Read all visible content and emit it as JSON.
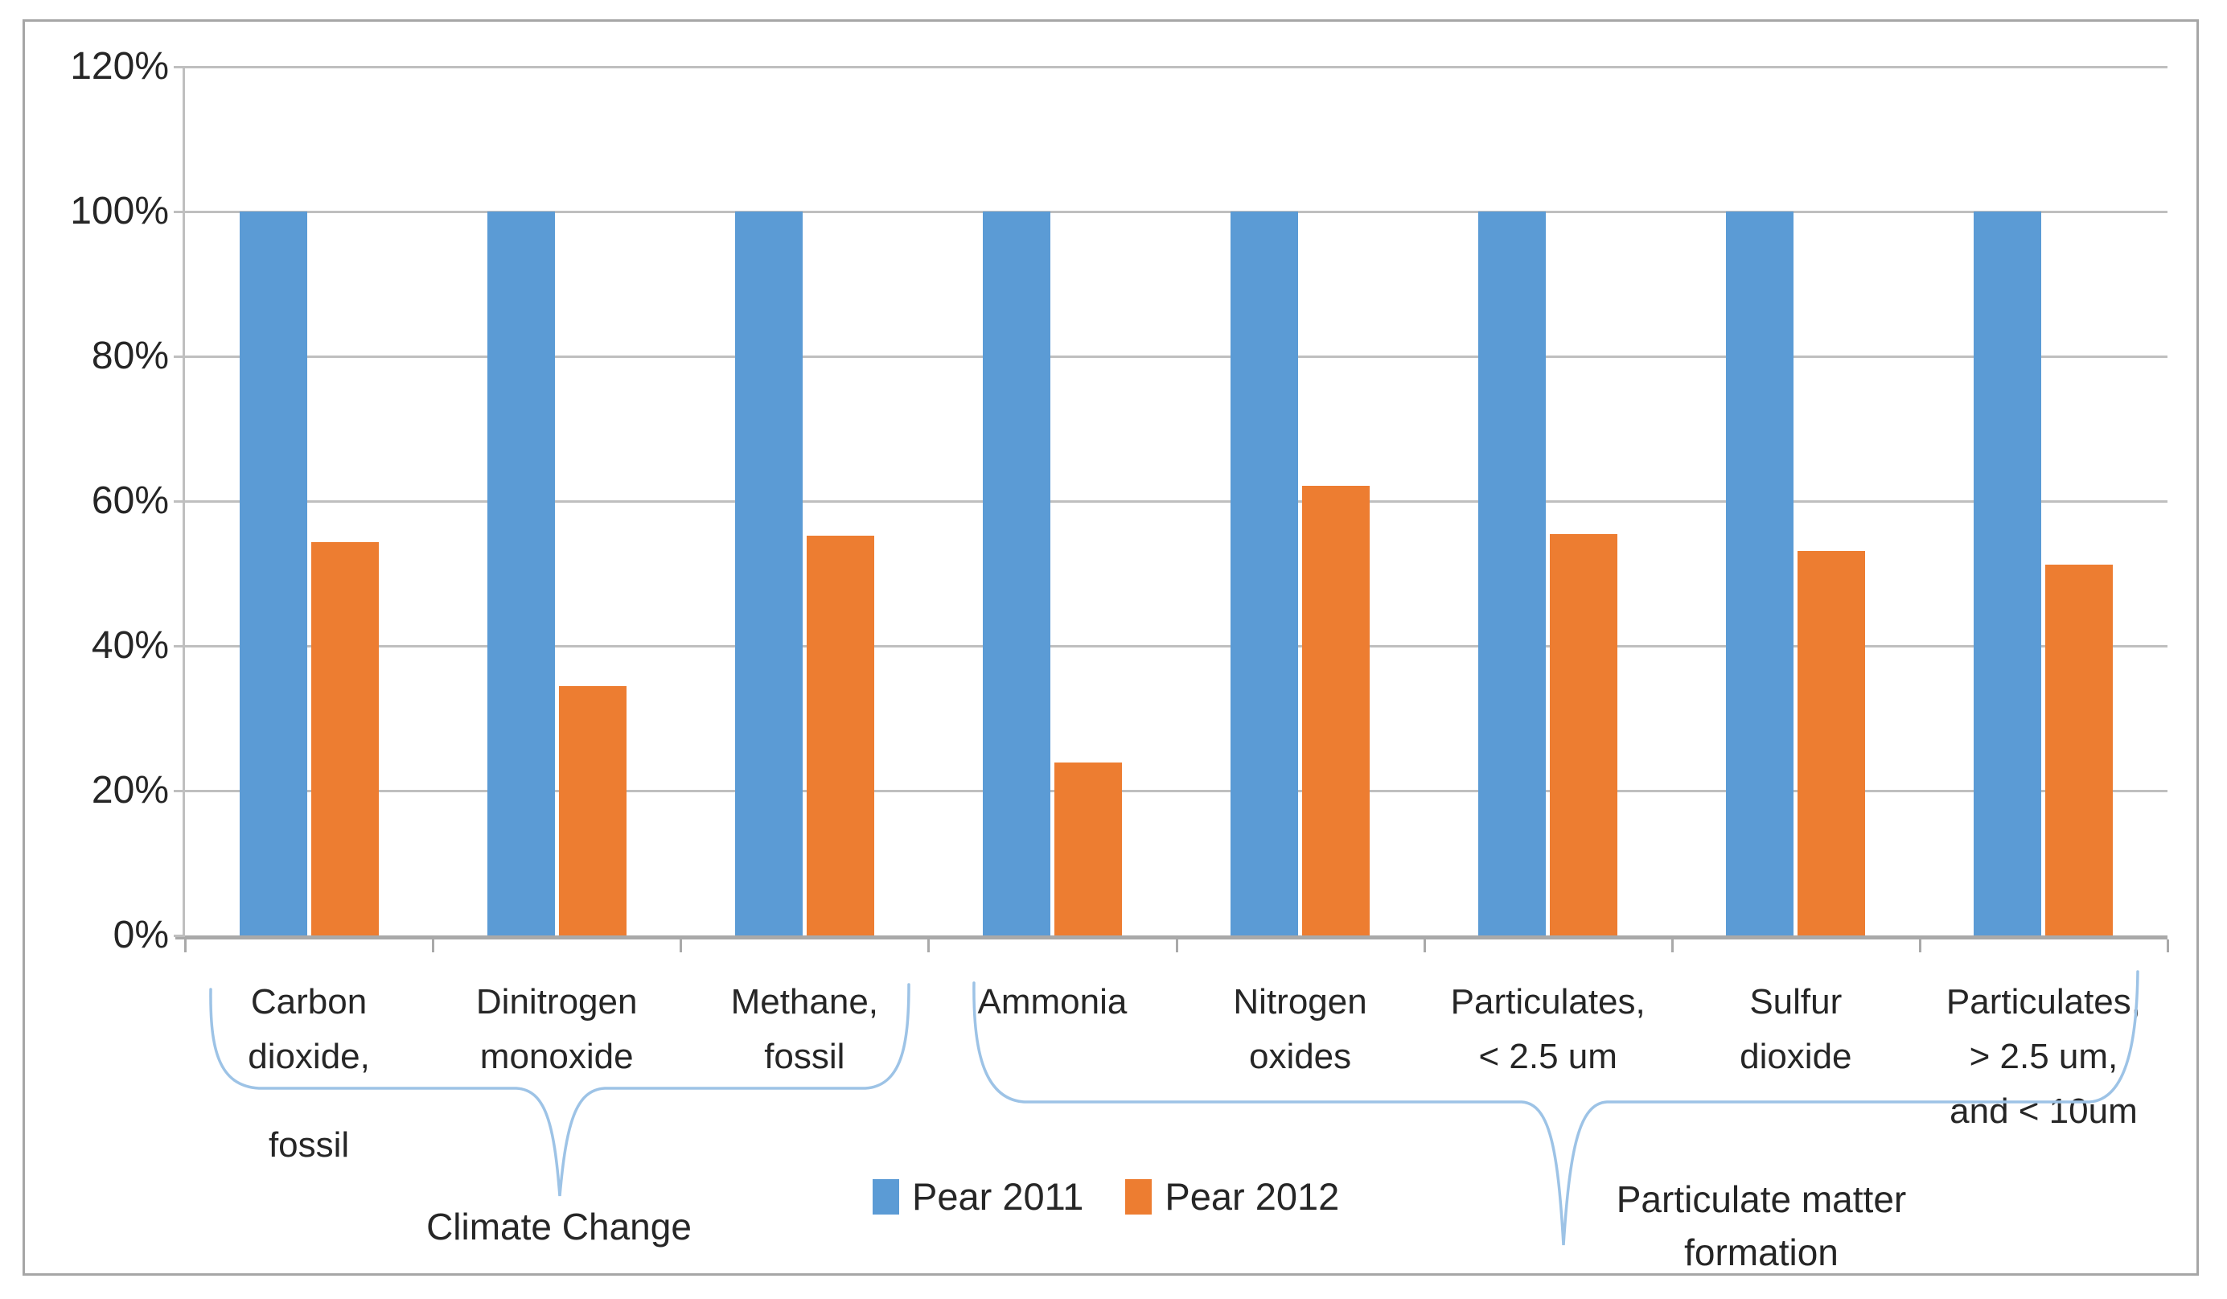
{
  "chart_data": {
    "type": "bar",
    "title": "",
    "xlabel": "",
    "ylabel": "",
    "categories": [
      "Carbon dioxide, fossil",
      "Dinitrogen monoxide",
      "Methane, fossil",
      "Ammonia",
      "Nitrogen oxides",
      "Particulates, < 2.5 um",
      "Sulfur dioxide",
      "Particulates, > 2.5 um, and < 10um"
    ],
    "categories_wrapped": [
      "Carbon\ndioxide,\nfossil",
      "Dinitrogen\nmonoxide",
      "Methane,\nfossil",
      "Ammonia",
      "Nitrogen\noxides",
      "Particulates,\n< 2.5 um",
      "Sulfur\ndioxide",
      "Particulates,\n> 2.5 um,\nand < 10um"
    ],
    "series": [
      {
        "name": "Pear 2011",
        "color": "#5B9BD5",
        "values": [
          100,
          100,
          100,
          100,
          100,
          100,
          100,
          100
        ]
      },
      {
        "name": "Pear 2012",
        "color": "#ED7D31",
        "values": [
          54.3,
          34.4,
          55.2,
          23.9,
          62.1,
          55.4,
          53.1,
          51.2
        ]
      }
    ],
    "ylim": [
      0,
      120
    ],
    "yticks": [
      0,
      20,
      40,
      60,
      80,
      100,
      120
    ],
    "ytick_labels": [
      "0%",
      "20%",
      "40%",
      "60%",
      "80%",
      "100%",
      "120%"
    ],
    "grid": true,
    "legend_position": "bottom-center",
    "annotations": [
      {
        "label": "Climate Change",
        "categories_span": [
          0,
          2
        ]
      },
      {
        "label": "Particulate matter formation",
        "categories_span": [
          3,
          7
        ]
      }
    ]
  },
  "colors": {
    "series1": "#5B9BD5",
    "series2": "#ED7D31",
    "gridline": "#BFBFBF",
    "axis": "#A9A9A9",
    "frame_border": "#A6A6A6",
    "brace": "#9DC3E6",
    "text": "#262626"
  }
}
